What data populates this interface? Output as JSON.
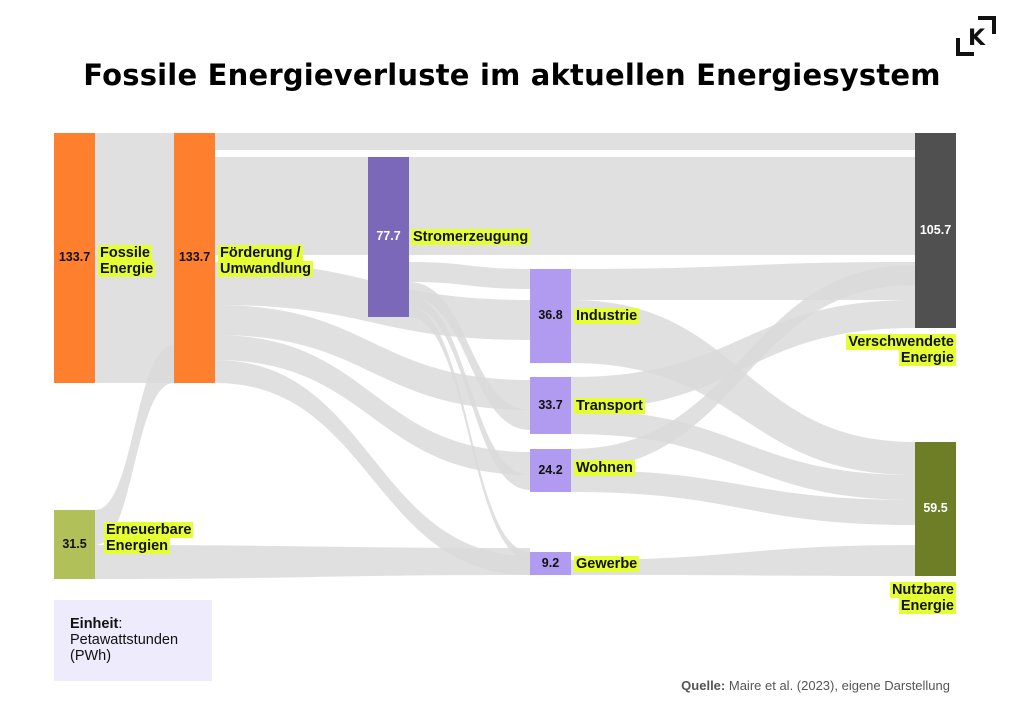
{
  "title": "Fossile Energieverluste im aktuellen Energiesystem",
  "logo_text": "K",
  "unit": {
    "label": "Einheit",
    "colon": ":",
    "line1": "Petawattstunden",
    "line2": "(PWh)"
  },
  "source": {
    "label": "Quelle:",
    "text": "Maire et al. (2023), eigene Darstellung"
  },
  "colors": {
    "fossil": "#fe7f2d",
    "strom": "#7b68b9",
    "sector": "#b09bf0",
    "waste": "#505050",
    "useful": "#6d7e27",
    "renew": "#b2c05a",
    "flow": "#d9d9d9",
    "label_bg": "#e5ff33"
  },
  "chart_data": {
    "type": "sankey",
    "unit": "PWh",
    "nodes": [
      {
        "id": "fossile",
        "label": "Fossile\nEnergie",
        "value": 133.7,
        "color": "#fe7f2d"
      },
      {
        "id": "erneuerbare",
        "label": "Erneuerbare\nEnergien",
        "value": 31.5,
        "color": "#b2c05a"
      },
      {
        "id": "foerderung",
        "label": "Förderung /\nUmwandlung",
        "value": 133.7,
        "color": "#fe7f2d"
      },
      {
        "id": "strom",
        "label": "Stromerzeugung",
        "value": 77.7,
        "color": "#7b68b9"
      },
      {
        "id": "industrie",
        "label": "Industrie",
        "value": 36.8,
        "color": "#b09bf0"
      },
      {
        "id": "transport",
        "label": "Transport",
        "value": 33.7,
        "color": "#b09bf0"
      },
      {
        "id": "wohnen",
        "label": "Wohnen",
        "value": 24.2,
        "color": "#b09bf0"
      },
      {
        "id": "gewerbe",
        "label": "Gewerbe",
        "value": 9.2,
        "color": "#b09bf0"
      },
      {
        "id": "verschwendet",
        "label": "Verschwendete\nEnergie",
        "value": 105.7,
        "color": "#505050"
      },
      {
        "id": "nutzbar",
        "label": "Nutzbare\nEnergie",
        "value": 59.5,
        "color": "#6d7e27"
      }
    ]
  }
}
